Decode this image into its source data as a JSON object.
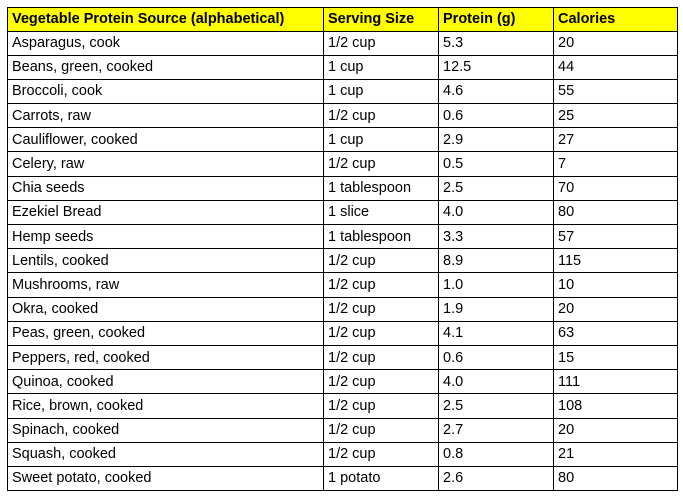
{
  "colors": {
    "header_background": "#ffff00",
    "border": "#000000",
    "text": "#000000"
  },
  "table": {
    "columns": [
      "Vegetable Protein Source (alphabetical)",
      "Serving Size",
      "Protein (g)",
      "Calories"
    ],
    "rows": [
      [
        "Asparagus, cook",
        "1/2 cup",
        "5.3",
        "20"
      ],
      [
        "Beans, green, cooked",
        "1 cup",
        "12.5",
        "44"
      ],
      [
        "Broccoli, cook",
        "1 cup",
        "4.6",
        "55"
      ],
      [
        "Carrots, raw",
        "1/2 cup",
        "0.6",
        "25"
      ],
      [
        "Cauliflower, cooked",
        "1 cup",
        "2.9",
        "27"
      ],
      [
        "Celery, raw",
        "1/2 cup",
        "0.5",
        "7"
      ],
      [
        "Chia seeds",
        "1 tablespoon",
        "2.5",
        "70"
      ],
      [
        "Ezekiel Bread",
        "1 slice",
        "4.0",
        "80"
      ],
      [
        "Hemp seeds",
        "1 tablespoon",
        "3.3",
        "57"
      ],
      [
        "Lentils, cooked",
        "1/2 cup",
        "8.9",
        "115"
      ],
      [
        "Mushrooms, raw",
        "1/2 cup",
        "1.0",
        "10"
      ],
      [
        "Okra, cooked",
        "1/2 cup",
        "1.9",
        "20"
      ],
      [
        "Peas, green, cooked",
        "1/2 cup",
        "4.1",
        "63"
      ],
      [
        "Peppers, red, cooked",
        "1/2 cup",
        "0.6",
        "15"
      ],
      [
        "Quinoa, cooked",
        "1/2 cup",
        "4.0",
        "111"
      ],
      [
        "Rice, brown, cooked",
        "1/2 cup",
        "2.5",
        "108"
      ],
      [
        "Spinach, cooked",
        "1/2 cup",
        "2.7",
        "20"
      ],
      [
        "Squash, cooked",
        "1/2 cup",
        "0.8",
        "21"
      ],
      [
        "Sweet potato, cooked",
        "1 potato",
        "2.6",
        "80"
      ]
    ]
  }
}
